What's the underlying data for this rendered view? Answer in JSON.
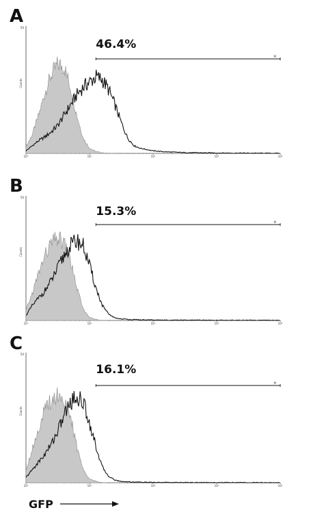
{
  "chart_data": [
    {
      "type": "area",
      "panel": "A",
      "gate": {
        "percent_label": "46.4%",
        "start_decade": 1.1,
        "end_decade": 4.0,
        "marker": "M"
      },
      "x_scale": "log",
      "xlim_decades": [
        0,
        4
      ],
      "x_tick_labels": [
        "10⁰",
        "10¹",
        "10²",
        "10³",
        "10⁴"
      ],
      "y_axis_label": "Counts",
      "y_top_label": "50",
      "series": [
        {
          "fill": true,
          "x": [
            0.0,
            0.1,
            0.2,
            0.3,
            0.4,
            0.5,
            0.6,
            0.7,
            0.8,
            0.9,
            1.0,
            1.1,
            1.2,
            1.3,
            1.4
          ],
          "y": [
            0.05,
            0.15,
            0.3,
            0.48,
            0.62,
            0.7,
            0.68,
            0.52,
            0.3,
            0.12,
            0.04,
            0.015,
            0.005,
            0.0,
            0.0
          ]
        },
        {
          "fill": false,
          "x": [
            0.0,
            0.1,
            0.2,
            0.3,
            0.4,
            0.5,
            0.6,
            0.7,
            0.8,
            0.9,
            1.0,
            1.1,
            1.2,
            1.3,
            1.4,
            1.5,
            1.6,
            1.7,
            1.8,
            1.9,
            2.0,
            2.2,
            2.5,
            3.0,
            4.0
          ],
          "y": [
            0.02,
            0.06,
            0.1,
            0.13,
            0.17,
            0.22,
            0.3,
            0.38,
            0.46,
            0.52,
            0.56,
            0.6,
            0.58,
            0.5,
            0.38,
            0.24,
            0.12,
            0.06,
            0.04,
            0.03,
            0.02,
            0.012,
            0.006,
            0.003,
            0.0
          ]
        }
      ]
    },
    {
      "type": "area",
      "panel": "B",
      "gate": {
        "percent_label": "15.3%",
        "start_decade": 1.1,
        "end_decade": 4.0,
        "marker": "M"
      },
      "x_scale": "log",
      "xlim_decades": [
        0,
        4
      ],
      "x_tick_labels": [
        "10⁰",
        "10¹",
        "10²",
        "10³",
        "10⁴"
      ],
      "y_axis_label": "Counts",
      "y_top_label": "50",
      "series": [
        {
          "fill": true,
          "x": [
            0.0,
            0.1,
            0.2,
            0.3,
            0.4,
            0.5,
            0.6,
            0.7,
            0.8,
            0.9,
            1.0,
            1.1,
            1.2,
            1.3
          ],
          "y": [
            0.08,
            0.22,
            0.38,
            0.52,
            0.62,
            0.66,
            0.62,
            0.48,
            0.26,
            0.09,
            0.025,
            0.008,
            0.0,
            0.0
          ]
        },
        {
          "fill": false,
          "x": [
            0.0,
            0.1,
            0.2,
            0.3,
            0.4,
            0.5,
            0.6,
            0.7,
            0.8,
            0.9,
            1.0,
            1.1,
            1.2,
            1.3,
            1.4,
            1.5,
            1.7,
            2.0,
            3.0,
            4.0
          ],
          "y": [
            0.04,
            0.12,
            0.18,
            0.24,
            0.32,
            0.42,
            0.52,
            0.6,
            0.64,
            0.6,
            0.44,
            0.26,
            0.12,
            0.05,
            0.02,
            0.012,
            0.006,
            0.003,
            0.001,
            0.0
          ]
        }
      ]
    },
    {
      "type": "area",
      "panel": "C",
      "gate": {
        "percent_label": "16.1%",
        "start_decade": 1.1,
        "end_decade": 4.0,
        "marker": "M"
      },
      "x_scale": "log",
      "xlim_decades": [
        0,
        4
      ],
      "x_tick_labels": [
        "10⁰",
        "10¹",
        "10²",
        "10³",
        "10⁴"
      ],
      "y_axis_label": "Counts",
      "y_top_label": "50",
      "series": [
        {
          "fill": true,
          "x": [
            0.0,
            0.1,
            0.2,
            0.3,
            0.4,
            0.5,
            0.6,
            0.7,
            0.8,
            0.9,
            1.0,
            1.1,
            1.2,
            1.3
          ],
          "y": [
            0.1,
            0.26,
            0.42,
            0.56,
            0.64,
            0.68,
            0.64,
            0.5,
            0.28,
            0.1,
            0.03,
            0.01,
            0.0,
            0.0
          ]
        },
        {
          "fill": false,
          "x": [
            0.0,
            0.1,
            0.2,
            0.3,
            0.4,
            0.5,
            0.6,
            0.7,
            0.8,
            0.9,
            1.0,
            1.1,
            1.2,
            1.3,
            1.4,
            1.5,
            1.7,
            2.0,
            3.0,
            4.0
          ],
          "y": [
            0.04,
            0.1,
            0.16,
            0.22,
            0.3,
            0.4,
            0.52,
            0.62,
            0.66,
            0.62,
            0.46,
            0.28,
            0.12,
            0.05,
            0.02,
            0.01,
            0.005,
            0.002,
            0.001,
            0.0
          ]
        }
      ]
    }
  ],
  "x_axis_title": "GFP",
  "colors": {
    "fill": "#c8c8c8",
    "line": "#111111",
    "axis": "#444444"
  }
}
